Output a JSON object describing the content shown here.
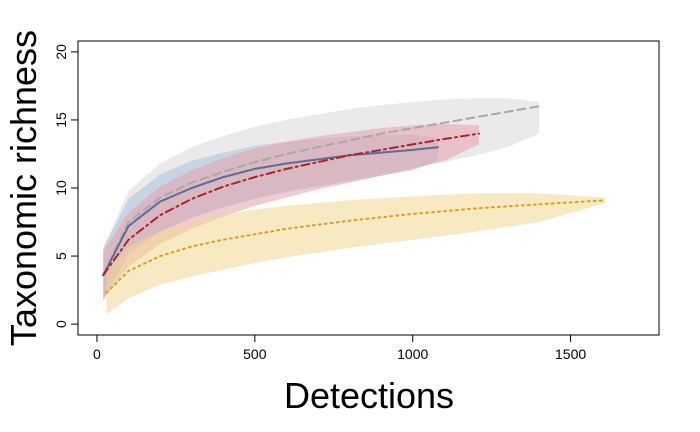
{
  "chart_data": {
    "type": "line",
    "title": "",
    "xlabel": "Detections",
    "ylabel": "Taxonomic richness",
    "xlim": [
      -60,
      1780
    ],
    "ylim": [
      -0.8,
      20.8
    ],
    "x_ticks": [
      0,
      500,
      1000,
      1500
    ],
    "y_ticks": [
      0,
      5,
      10,
      15,
      20
    ],
    "grid": false,
    "legend": "none",
    "series": [
      {
        "color": "#a8a8a8",
        "band_color": "#d9d9d9",
        "dash": "dashed",
        "x": [
          20,
          100,
          200,
          300,
          400,
          500,
          600,
          700,
          800,
          900,
          1000,
          1100,
          1200,
          1300,
          1400
        ],
        "y": [
          3.6,
          7.5,
          9.3,
          10.4,
          11.2,
          11.9,
          12.5,
          13.0,
          13.5,
          14.0,
          14.4,
          14.8,
          15.2,
          15.6,
          16.0
        ],
        "lower": [
          1.6,
          5.2,
          6.8,
          7.8,
          8.6,
          9.2,
          9.8,
          10.2,
          10.6,
          11.1,
          11.5,
          11.9,
          12.4,
          13.0,
          14.0
        ],
        "upper": [
          5.6,
          9.8,
          11.8,
          13.0,
          13.8,
          14.5,
          15.0,
          15.4,
          15.8,
          16.1,
          16.3,
          16.5,
          16.6,
          16.6,
          16.3
        ]
      },
      {
        "color": "#5b6e96",
        "band_color": "#a9c1dc",
        "dash": "solid",
        "x": [
          20,
          100,
          200,
          300,
          400,
          500,
          600,
          700,
          800,
          900,
          1000,
          1080
        ],
        "y": [
          3.6,
          7.2,
          9.0,
          10.0,
          10.8,
          11.4,
          11.8,
          12.1,
          12.4,
          12.6,
          12.8,
          13.0
        ],
        "lower": [
          1.8,
          5.2,
          6.8,
          7.8,
          8.6,
          9.2,
          9.7,
          10.1,
          10.5,
          10.9,
          11.3,
          12.0
        ],
        "upper": [
          5.6,
          9.2,
          11.0,
          12.0,
          12.6,
          13.1,
          13.4,
          13.6,
          13.8,
          13.9,
          13.9,
          13.7
        ]
      },
      {
        "color": "#b22222",
        "band_color": "#e6a0a8",
        "dash": "dashdot",
        "x": [
          20,
          100,
          200,
          300,
          400,
          500,
          600,
          700,
          800,
          900,
          1000,
          1100,
          1210
        ],
        "y": [
          3.6,
          6.2,
          8.0,
          9.2,
          10.1,
          10.8,
          11.4,
          11.9,
          12.4,
          12.8,
          13.2,
          13.6,
          14.0
        ],
        "lower": [
          1.9,
          4.2,
          5.9,
          7.0,
          7.9,
          8.7,
          9.3,
          9.9,
          10.4,
          10.9,
          11.4,
          12.0,
          13.2
        ],
        "upper": [
          5.3,
          8.2,
          10.1,
          11.3,
          12.2,
          12.9,
          13.4,
          13.8,
          14.1,
          14.4,
          14.6,
          14.7,
          14.6
        ]
      },
      {
        "color": "#d9a020",
        "band_color": "#f0d890",
        "dash": "dotted",
        "x": [
          30,
          100,
          200,
          300,
          400,
          500,
          600,
          800,
          1000,
          1200,
          1400,
          1610
        ],
        "y": [
          2.3,
          3.9,
          5.0,
          5.7,
          6.2,
          6.6,
          7.0,
          7.6,
          8.1,
          8.5,
          8.8,
          9.1
        ],
        "lower": [
          0.7,
          1.9,
          2.9,
          3.5,
          4.0,
          4.5,
          4.9,
          5.6,
          6.2,
          6.8,
          7.5,
          8.9
        ],
        "upper": [
          3.9,
          5.7,
          6.8,
          7.5,
          8.0,
          8.4,
          8.7,
          9.1,
          9.4,
          9.6,
          9.6,
          9.3
        ]
      }
    ]
  }
}
